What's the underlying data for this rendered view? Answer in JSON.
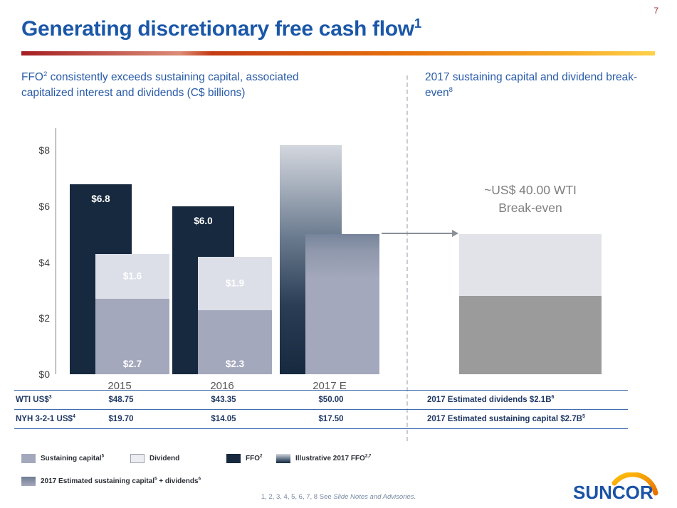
{
  "page": {
    "number": "7"
  },
  "title": {
    "text": "Generating discretionary free cash flow",
    "sup": "1"
  },
  "headers": {
    "left": {
      "pre": "FFO",
      "sup": "2",
      "rest": " consistently exceeds sustaining capital, associated capitalized interest and dividends (C$ billions)"
    },
    "right": {
      "text": "2017 sustaining capital and dividend break-even",
      "sup": "8"
    }
  },
  "chart_data": {
    "type": "bar",
    "unit": "C$ billions",
    "categories": [
      "2015",
      "2016",
      "2017 E"
    ],
    "ylim": [
      0,
      8.8
    ],
    "yticks": [
      {
        "label": "$0",
        "value": 0
      },
      {
        "label": "$2",
        "value": 2
      },
      {
        "label": "$4",
        "value": 4
      },
      {
        "label": "$6",
        "value": 6
      },
      {
        "label": "$8",
        "value": 8
      }
    ],
    "groups": [
      {
        "ffo": 6.8,
        "ffo_label": "$6.8",
        "sustaining": 2.7,
        "sustaining_label": "$2.7",
        "dividend": 1.6,
        "dividend_label": "$1.6"
      },
      {
        "ffo": 6.0,
        "ffo_label": "$6.0",
        "sustaining": 2.3,
        "sustaining_label": "$2.3",
        "dividend": 1.9,
        "dividend_label": "$1.9"
      },
      {
        "illustrative_ffo": 8.2,
        "combined_sustaining_dividends": 5.0
      }
    ],
    "breakeven": {
      "line1": "~US$ 40.00 WTI",
      "line2": "Break-even",
      "light_segment": 2.2,
      "dark_segment": 2.8,
      "total": 5.0
    },
    "series_names": [
      "FFO",
      "Illustrative 2017 FFO",
      "Sustaining capital",
      "Dividend",
      "2017 Estimated sustaining capital + dividends"
    ]
  },
  "table": {
    "rows": [
      {
        "label": {
          "text": "WTI US$",
          "sup": "3"
        },
        "values": [
          "$48.75",
          "$43.35",
          "$50.00"
        ],
        "right": {
          "text": "2017 Estimated dividends $2.1B",
          "sup": "6"
        }
      },
      {
        "label": {
          "text": "NYH 3-2-1 US$",
          "sup": "4"
        },
        "values": [
          "$19.70",
          "$14.05",
          "$17.50"
        ],
        "right": {
          "text": "2017 Estimated sustaining capital $2.7B",
          "sup": "5"
        }
      }
    ]
  },
  "legend": {
    "sustaining": {
      "label": "Sustaining capital",
      "sup": "5"
    },
    "dividend": {
      "label": "Dividend"
    },
    "ffo": {
      "label": "FFO",
      "sup": "2"
    },
    "illustrative": {
      "label": "Illustrative 2017 FFO",
      "sup": "2,7"
    },
    "combined": {
      "p1": "2017 Estimated sustaining capital",
      "s1": "5",
      "p2": " + dividends",
      "s2": "6"
    }
  },
  "footer": {
    "prefix": "1, 2, 3, 4, 5, 6, 7, 8 See ",
    "italic": "Slide Notes and Advisories."
  },
  "logo": {
    "text": "SUNCOR"
  },
  "colors": {
    "title_blue": "#1B57A8",
    "ffo_navy": "#17293E",
    "sustaining_gray": "#A4A8BC",
    "dividend_gray": "#DCDFE8",
    "breakeven_dark": "#9B9B9B",
    "breakeven_light": "#E2E3E8",
    "rule_blue": "#3E6CB0",
    "accent_red": "#A41D21",
    "accent_yellow": "#FFD24A",
    "page_number_red": "#943634"
  }
}
